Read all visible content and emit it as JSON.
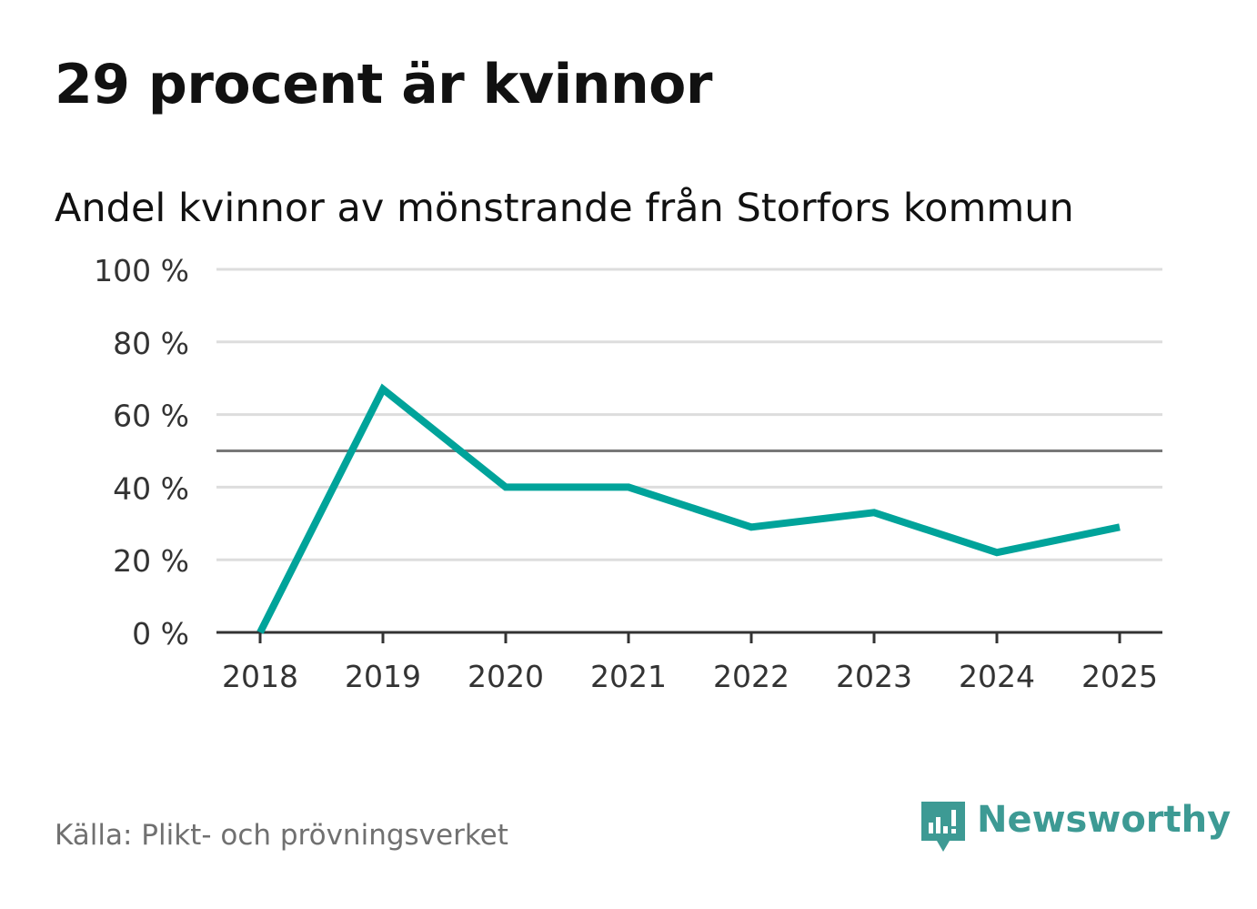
{
  "header": {
    "title": "29 procent är kvinnor",
    "subtitle": "Andel kvinnor av mönstrande från Storfors kommun"
  },
  "chart_data": {
    "type": "line",
    "title": "29 procent är kvinnor",
    "subtitle": "Andel kvinnor av mönstrande från Storfors kommun",
    "categories": [
      "2018",
      "2019",
      "2020",
      "2021",
      "2022",
      "2023",
      "2024",
      "2025"
    ],
    "series": [
      {
        "name": "Andel kvinnor",
        "values": [
          0,
          67,
          40,
          40,
          29,
          33,
          22,
          29
        ],
        "color": "#00a39a"
      }
    ],
    "reference_line": 50,
    "ylim": [
      0,
      100
    ],
    "yticks": [
      0,
      20,
      40,
      60,
      80,
      100
    ],
    "ytick_labels": [
      "0 %",
      "20 %",
      "40 %",
      "60 %",
      "80 %",
      "100 %"
    ],
    "xlabel": "",
    "ylabel": "",
    "grid": true
  },
  "footer": {
    "source": "Källa: Plikt- och prövningsverket",
    "brand": "Newsworthy"
  },
  "colors": {
    "line": "#00a39a",
    "grid": "#dddddd",
    "reference": "#777777",
    "axis": "#333333",
    "brand": "#3d9a94"
  }
}
